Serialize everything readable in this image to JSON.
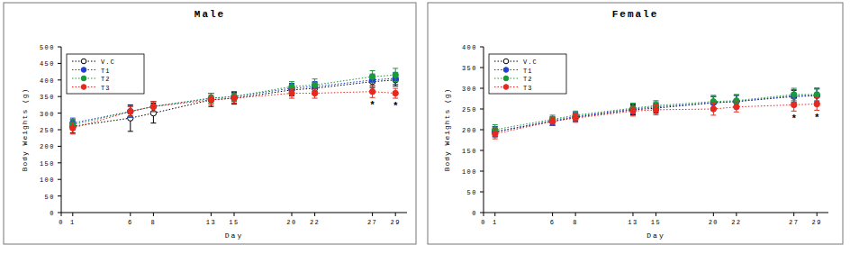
{
  "chart_data": [
    {
      "type": "line",
      "title": "Male",
      "x_label": "Day",
      "y_label": "Body Weights (g)",
      "x": [
        1,
        6,
        8,
        13,
        15,
        20,
        22,
        27,
        29
      ],
      "xlim": [
        0,
        30
      ],
      "xticks": [
        0,
        1,
        6,
        8,
        13,
        15,
        20,
        22,
        27,
        29
      ],
      "ylim": [
        0,
        500
      ],
      "yticks": [
        0,
        50,
        100,
        150,
        200,
        250,
        300,
        350,
        400,
        450,
        500
      ],
      "legend": "upper left",
      "marker": "circle",
      "line_style": "dotted",
      "series": [
        {
          "name": "V.C",
          "color": "#000000",
          "marker": "open_circle",
          "values": [
            260,
            285,
            300,
            340,
            345,
            370,
            375,
            395,
            400
          ],
          "errors": [
            20,
            40,
            30,
            20,
            18,
            18,
            18,
            18,
            18
          ]
        },
        {
          "name": "T1",
          "color": "#1f3fd6",
          "values": [
            270,
            305,
            320,
            345,
            350,
            375,
            380,
            400,
            405
          ],
          "errors": [
            15,
            18,
            15,
            15,
            15,
            15,
            15,
            18,
            18
          ]
        },
        {
          "name": "T2",
          "color": "#1a9a3a",
          "values": [
            265,
            305,
            320,
            345,
            350,
            380,
            385,
            410,
            415
          ],
          "errors": [
            15,
            15,
            15,
            15,
            15,
            15,
            18,
            18,
            20
          ]
        },
        {
          "name": "T3",
          "color": "#e8281e",
          "values": [
            255,
            305,
            320,
            340,
            345,
            360,
            360,
            365,
            360
          ],
          "errors": [
            18,
            15,
            15,
            15,
            15,
            15,
            15,
            18,
            15
          ]
        }
      ],
      "annotations": [
        {
          "x": 27,
          "text": "*"
        },
        {
          "x": 29,
          "text": "*"
        }
      ]
    },
    {
      "type": "line",
      "title": "Female",
      "x_label": "Day",
      "y_label": "Body Weights (g)",
      "x": [
        1,
        6,
        8,
        13,
        15,
        20,
        22,
        27,
        29
      ],
      "xlim": [
        0,
        30
      ],
      "xticks": [
        0,
        1,
        6,
        8,
        13,
        15,
        20,
        22,
        27,
        29
      ],
      "ylim": [
        0,
        400
      ],
      "yticks": [
        0,
        50,
        100,
        150,
        200,
        250,
        300,
        350,
        400
      ],
      "legend": "upper left",
      "marker": "circle",
      "line_style": "dotted",
      "series": [
        {
          "name": "V.C",
          "color": "#000000",
          "marker": "open_circle",
          "values": [
            195,
            220,
            230,
            248,
            252,
            265,
            268,
            280,
            282
          ],
          "errors": [
            12,
            10,
            10,
            12,
            12,
            15,
            15,
            15,
            18
          ]
        },
        {
          "name": "T1",
          "color": "#1f3fd6",
          "values": [
            195,
            222,
            232,
            250,
            255,
            265,
            268,
            282,
            283
          ],
          "errors": [
            12,
            10,
            10,
            12,
            12,
            15,
            15,
            15,
            15
          ]
        },
        {
          "name": "T2",
          "color": "#1a9a3a",
          "values": [
            200,
            225,
            235,
            252,
            258,
            268,
            270,
            285,
            285
          ],
          "errors": [
            12,
            10,
            10,
            12,
            12,
            15,
            15,
            15,
            15
          ]
        },
        {
          "name": "T3",
          "color": "#e8281e",
          "values": [
            190,
            220,
            228,
            245,
            248,
            250,
            255,
            260,
            262
          ],
          "errors": [
            12,
            10,
            10,
            12,
            12,
            15,
            12,
            15,
            15
          ]
        }
      ],
      "annotations": [
        {
          "x": 27,
          "text": "*"
        },
        {
          "x": 29,
          "text": "*"
        }
      ]
    }
  ]
}
